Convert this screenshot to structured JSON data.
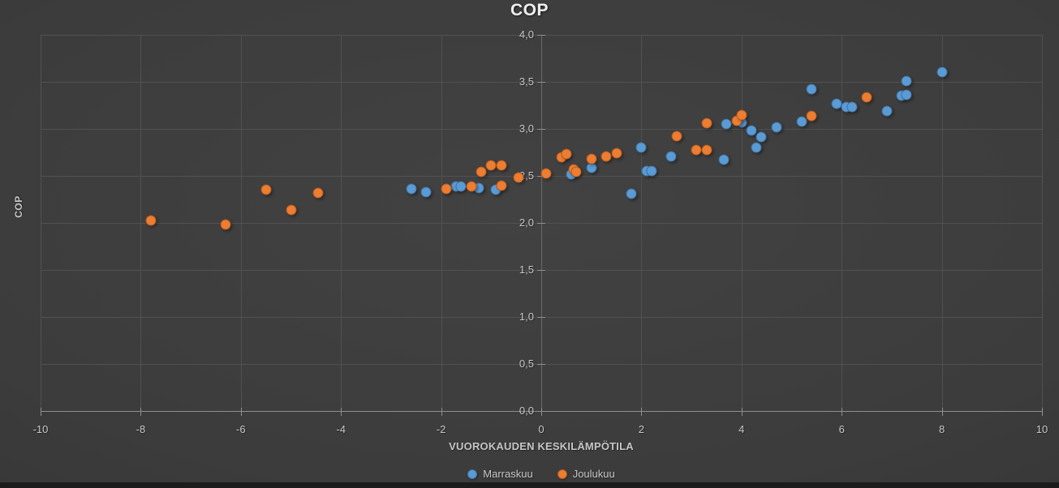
{
  "chart_data": {
    "type": "scatter",
    "title": "COP",
    "xlabel": "VUOROKAUDEN KESKILÄMPÖTILA",
    "ylabel": "COP",
    "xlim": [
      -10,
      10
    ],
    "ylim": [
      0,
      4
    ],
    "x_ticks": [
      "-10",
      "-8",
      "-6",
      "-4",
      "-2",
      "0",
      "2",
      "4",
      "6",
      "8",
      "10"
    ],
    "y_ticks": [
      "0,0",
      "0,5",
      "1,0",
      "1,5",
      "2,0",
      "2,5",
      "3,0",
      "3,5",
      "4,0"
    ],
    "grid": true,
    "legend_position": "bottom-center",
    "series": [
      {
        "name": "Marraskuu",
        "color": "#5B9BD5",
        "border_color": "#41719C",
        "points": [
          [
            -2.6,
            2.36
          ],
          [
            -2.3,
            2.33
          ],
          [
            -1.7,
            2.39
          ],
          [
            -1.6,
            2.39
          ],
          [
            -1.25,
            2.37
          ],
          [
            -0.9,
            2.35
          ],
          [
            0.6,
            2.52
          ],
          [
            1.0,
            2.59
          ],
          [
            1.8,
            2.31
          ],
          [
            2.0,
            2.8
          ],
          [
            2.1,
            2.55
          ],
          [
            2.2,
            2.55
          ],
          [
            2.6,
            2.71
          ],
          [
            3.65,
            2.67
          ],
          [
            3.7,
            3.05
          ],
          [
            4.0,
            3.07
          ],
          [
            4.2,
            2.98
          ],
          [
            4.3,
            2.8
          ],
          [
            4.4,
            2.91
          ],
          [
            4.7,
            3.02
          ],
          [
            5.2,
            3.08
          ],
          [
            5.4,
            3.42
          ],
          [
            5.9,
            3.27
          ],
          [
            6.1,
            3.23
          ],
          [
            6.2,
            3.23
          ],
          [
            6.9,
            3.19
          ],
          [
            7.2,
            3.35
          ],
          [
            7.3,
            3.36
          ],
          [
            7.3,
            3.51
          ],
          [
            8.0,
            3.6
          ]
        ]
      },
      {
        "name": "Joulukuu",
        "color": "#ED7D31",
        "border_color": "#AE5A21",
        "points": [
          [
            -7.8,
            2.03
          ],
          [
            -6.3,
            1.98
          ],
          [
            -5.5,
            2.35
          ],
          [
            -5.0,
            2.14
          ],
          [
            -4.45,
            2.32
          ],
          [
            -1.9,
            2.36
          ],
          [
            -1.4,
            2.39
          ],
          [
            -1.2,
            2.54
          ],
          [
            -1.0,
            2.61
          ],
          [
            -0.8,
            2.61
          ],
          [
            -0.8,
            2.4
          ],
          [
            -0.45,
            2.48
          ],
          [
            0.1,
            2.53
          ],
          [
            0.4,
            2.7
          ],
          [
            0.5,
            2.73
          ],
          [
            0.65,
            2.57
          ],
          [
            0.7,
            2.54
          ],
          [
            1.0,
            2.68
          ],
          [
            1.3,
            2.71
          ],
          [
            1.5,
            2.74
          ],
          [
            2.7,
            2.92
          ],
          [
            3.1,
            2.78
          ],
          [
            3.3,
            2.78
          ],
          [
            3.3,
            3.06
          ],
          [
            3.9,
            3.09
          ],
          [
            4.0,
            3.15
          ],
          [
            5.4,
            3.14
          ],
          [
            6.5,
            3.34
          ]
        ]
      }
    ]
  }
}
